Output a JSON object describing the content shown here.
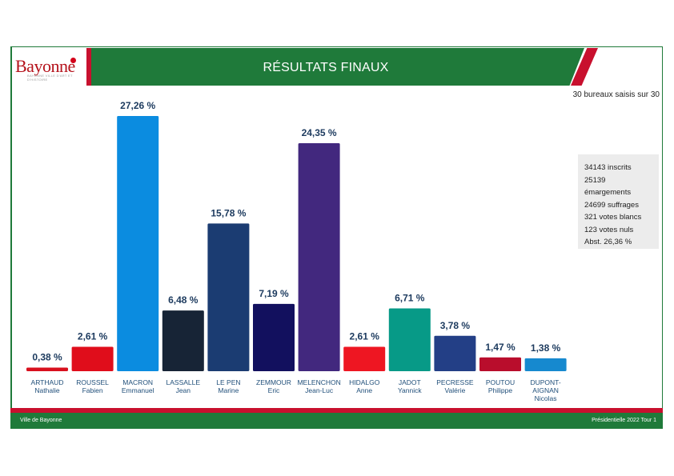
{
  "header": {
    "logo_text": "Bayonne",
    "logo_subtext": "BAYONNE VILLE D'ART ET D'HISTOIRE",
    "title": "RÉSULTATS FINAUX"
  },
  "bureaux_text": "30 bureaux saisis sur 30",
  "stats": {
    "inscrits": "34143 inscrits",
    "emargements_value": "25139",
    "emargements_label": "émargements",
    "suffrages": "24699 suffrages",
    "blancs": "321 votes blancs",
    "nuls": "123 votes nuls",
    "abstention": "Abst. 26,36 %"
  },
  "footer": {
    "left": "Ville de Bayonne",
    "right": "Présidentielle 2022 Tour 1"
  },
  "colors": {
    "green": "#1f7a3a",
    "red": "#c8102e"
  },
  "chart_data": {
    "type": "bar",
    "categories": [
      [
        "ARTHAUD",
        "Nathalie"
      ],
      [
        "ROUSSEL",
        "Fabien"
      ],
      [
        "MACRON",
        "Emmanuel"
      ],
      [
        "LASSALLE",
        "Jean"
      ],
      [
        "LE PEN",
        "Marine"
      ],
      [
        "ZEMMOUR",
        "Eric"
      ],
      [
        "MELENCHON",
        "Jean-Luc"
      ],
      [
        "HIDALGO",
        "Anne"
      ],
      [
        "JADOT",
        "Yannick"
      ],
      [
        "PECRESSE",
        "Valérie"
      ],
      [
        "POUTOU",
        "Philippe"
      ],
      [
        "DUPONT-",
        "AIGNAN",
        "Nicolas"
      ]
    ],
    "values": [
      0.38,
      2.61,
      27.26,
      6.48,
      15.78,
      7.19,
      24.35,
      2.61,
      6.71,
      3.78,
      1.47,
      1.38
    ],
    "labels": [
      "0,38 %",
      "2,61 %",
      "27,26 %",
      "6,48 %",
      "15,78 %",
      "7,19 %",
      "24,35 %",
      "2,61 %",
      "6,71 %",
      "3,78 %",
      "1,47 %",
      "1,38 %"
    ],
    "colors": [
      "#d8101e",
      "#e00d1b",
      "#0b8ce0",
      "#172436",
      "#1b3c72",
      "#12105e",
      "#42287e",
      "#ee1622",
      "#079a87",
      "#233f86",
      "#b90d2c",
      "#1689cf"
    ],
    "ylim": [
      0,
      27.26
    ],
    "title": "RÉSULTATS FINAUX"
  }
}
